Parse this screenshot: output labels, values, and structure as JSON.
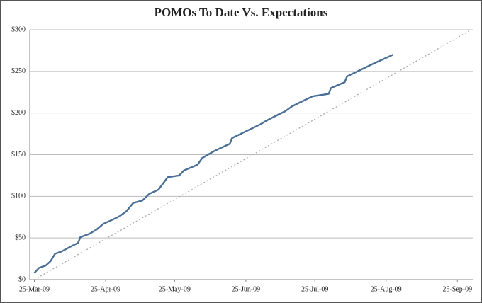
{
  "chart_data": {
    "type": "line",
    "title": "POMOs To Date Vs. Expectations",
    "xlim": [
      "2009-03-23",
      "2009-10-02"
    ],
    "xticks": [
      {
        "value": "2009-03-25",
        "label": "25-Mar-09"
      },
      {
        "value": "2009-04-25",
        "label": "25-Apr-09"
      },
      {
        "value": "2009-05-25",
        "label": "25-May-09"
      },
      {
        "value": "2009-06-25",
        "label": "25-Jun-09"
      },
      {
        "value": "2009-07-25",
        "label": "25-Jul-09"
      },
      {
        "value": "2009-08-25",
        "label": "25-Aug-09"
      },
      {
        "value": "2009-09-25",
        "label": "25-Sep-09"
      }
    ],
    "ylim": [
      0,
      300
    ],
    "yticks": [
      {
        "value": 0,
        "label": "$0"
      },
      {
        "value": 50,
        "label": "$50"
      },
      {
        "value": 100,
        "label": "$100"
      },
      {
        "value": 150,
        "label": "$150"
      },
      {
        "value": 200,
        "label": "$200"
      },
      {
        "value": 250,
        "label": "$250"
      },
      {
        "value": 300,
        "label": "$300"
      }
    ],
    "grid": true,
    "series": [
      {
        "color": "#4a6f96",
        "style": "solid",
        "x": [
          "2009-03-25",
          "2009-03-27",
          "2009-03-30",
          "2009-04-01",
          "2009-04-03",
          "2009-04-06",
          "2009-04-10",
          "2009-04-13",
          "2009-04-14",
          "2009-04-18",
          "2009-04-21",
          "2009-04-24",
          "2009-04-28",
          "2009-05-01",
          "2009-05-04",
          "2009-05-07",
          "2009-05-11",
          "2009-05-14",
          "2009-05-18",
          "2009-05-22",
          "2009-05-27",
          "2009-05-29",
          "2009-06-04",
          "2009-06-06",
          "2009-06-11",
          "2009-06-14",
          "2009-06-18",
          "2009-06-19",
          "2009-06-25",
          "2009-07-01",
          "2009-07-04",
          "2009-07-09",
          "2009-07-12",
          "2009-07-15",
          "2009-07-18",
          "2009-07-24",
          "2009-07-31",
          "2009-08-01",
          "2009-08-07",
          "2009-08-08",
          "2009-08-14",
          "2009-08-20",
          "2009-08-28"
        ],
        "values": [
          8,
          14,
          17,
          22,
          31,
          34,
          40,
          44,
          51,
          55,
          60,
          67,
          72,
          76,
          82,
          92,
          95,
          103,
          108,
          123,
          125,
          131,
          138,
          146,
          154,
          158,
          163,
          170,
          178,
          186,
          191,
          198,
          202,
          208,
          212,
          220,
          223,
          230,
          237,
          244,
          252,
          260,
          270
        ]
      },
      {
        "color": "#aaaaaa",
        "style": "dotted",
        "x": [
          "2009-03-25",
          "2009-10-01"
        ],
        "values": [
          0,
          300
        ]
      }
    ]
  }
}
